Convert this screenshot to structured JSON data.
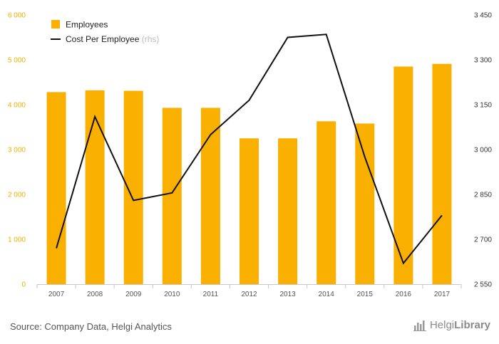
{
  "chart_data": {
    "type": "bar+line",
    "categories": [
      "2007",
      "2008",
      "2009",
      "2010",
      "2011",
      "2012",
      "2013",
      "2014",
      "2015",
      "2016",
      "2017"
    ],
    "series": [
      {
        "name": "Employees",
        "type": "bar",
        "axis": "left",
        "color": "#f9b000",
        "values": [
          4280,
          4320,
          4310,
          3930,
          3930,
          3250,
          3250,
          3630,
          3580,
          4850,
          4910
        ]
      },
      {
        "name": "Cost Per Employee",
        "name_suffix": "(rhs)",
        "type": "line",
        "axis": "right",
        "color": "#111111",
        "values": [
          2670,
          3110,
          2830,
          2855,
          3050,
          3165,
          3375,
          3385,
          2975,
          2620,
          2780
        ]
      }
    ],
    "y_left": {
      "ylim": [
        0,
        6000
      ],
      "ticks": [
        0,
        1000,
        2000,
        3000,
        4000,
        5000,
        6000
      ],
      "tick_labels": [
        "0",
        "1 000",
        "2 000",
        "3 000",
        "4 000",
        "5 000",
        "6 000"
      ]
    },
    "y_right": {
      "ylim": [
        2550,
        3450
      ],
      "ticks": [
        2550,
        2700,
        2850,
        3000,
        3150,
        3300,
        3450
      ],
      "tick_labels": [
        "2 550",
        "2 700",
        "2 850",
        "3 000",
        "3 150",
        "3 300",
        "3 450"
      ]
    },
    "legend": {
      "placement": "top-left",
      "items": [
        {
          "label": "Employees",
          "suffix": "",
          "marker": "square"
        },
        {
          "label": "Cost Per Employee",
          "suffix": "(rhs)",
          "marker": "line"
        }
      ]
    },
    "grid": false
  },
  "footer": {
    "source": "Source: Company Data, Helgi Analytics",
    "logo": {
      "brand_light": "Helgi",
      "brand_bold": "Library",
      "icon": "bar-chart-icon"
    }
  }
}
